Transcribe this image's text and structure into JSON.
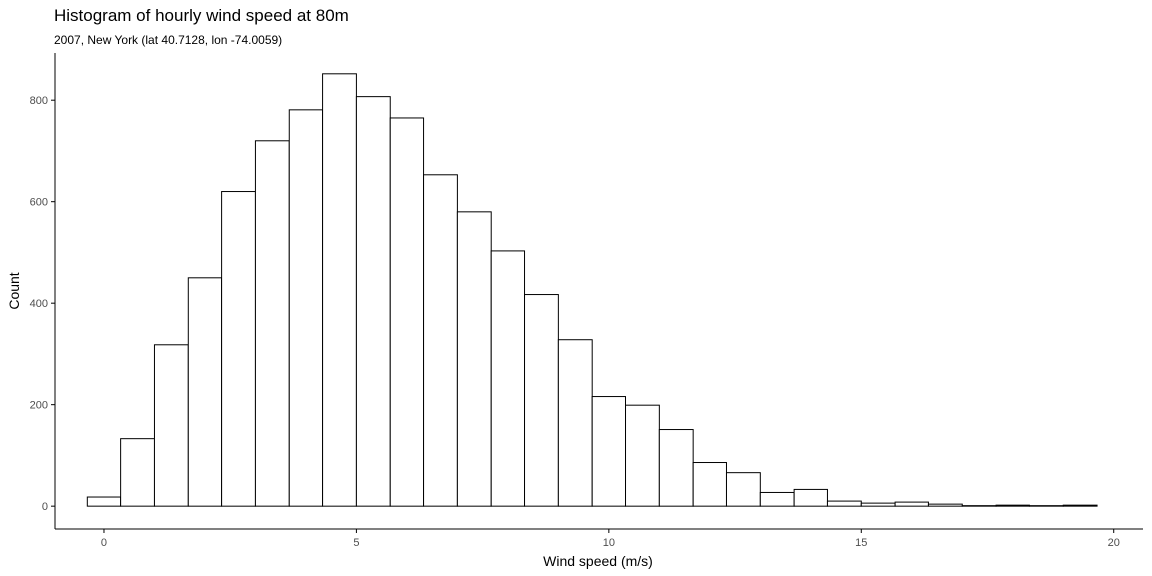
{
  "chart_data": {
    "type": "bar",
    "title": "Histogram of hourly wind speed at 80m",
    "subtitle": "2007, New York (lat 40.7128, lon -74.0059)",
    "xlabel": "Wind speed (m/s)",
    "ylabel": "Count",
    "xlim": [
      -0.97,
      20.58
    ],
    "ylim": [
      -45,
      893
    ],
    "grid": false,
    "x_ticks": [
      0,
      5,
      10,
      15,
      20
    ],
    "y_ticks": [
      0,
      200,
      400,
      600,
      800
    ],
    "bins": [
      {
        "start": -0.33,
        "end": 0.33,
        "count": 18
      },
      {
        "start": 0.33,
        "end": 1.0,
        "count": 133
      },
      {
        "start": 1.0,
        "end": 1.67,
        "count": 318
      },
      {
        "start": 1.67,
        "end": 2.33,
        "count": 450
      },
      {
        "start": 2.33,
        "end": 3.0,
        "count": 620
      },
      {
        "start": 3.0,
        "end": 3.67,
        "count": 720
      },
      {
        "start": 3.67,
        "end": 4.33,
        "count": 781
      },
      {
        "start": 4.33,
        "end": 5.0,
        "count": 852
      },
      {
        "start": 5.0,
        "end": 5.67,
        "count": 807
      },
      {
        "start": 5.67,
        "end": 6.33,
        "count": 765
      },
      {
        "start": 6.33,
        "end": 7.0,
        "count": 653
      },
      {
        "start": 7.0,
        "end": 7.67,
        "count": 580
      },
      {
        "start": 7.67,
        "end": 8.33,
        "count": 503
      },
      {
        "start": 8.33,
        "end": 9.0,
        "count": 417
      },
      {
        "start": 9.0,
        "end": 9.67,
        "count": 328
      },
      {
        "start": 9.67,
        "end": 10.33,
        "count": 216
      },
      {
        "start": 10.33,
        "end": 11.0,
        "count": 199
      },
      {
        "start": 11.0,
        "end": 11.67,
        "count": 151
      },
      {
        "start": 11.67,
        "end": 12.33,
        "count": 86
      },
      {
        "start": 12.33,
        "end": 13.0,
        "count": 66
      },
      {
        "start": 13.0,
        "end": 13.67,
        "count": 27
      },
      {
        "start": 13.67,
        "end": 14.33,
        "count": 33
      },
      {
        "start": 14.33,
        "end": 15.0,
        "count": 10
      },
      {
        "start": 15.0,
        "end": 15.67,
        "count": 6
      },
      {
        "start": 15.67,
        "end": 16.33,
        "count": 8
      },
      {
        "start": 16.33,
        "end": 17.0,
        "count": 4
      },
      {
        "start": 17.0,
        "end": 17.67,
        "count": 1
      },
      {
        "start": 17.67,
        "end": 18.33,
        "count": 2
      },
      {
        "start": 18.33,
        "end": 19.0,
        "count": 1
      },
      {
        "start": 19.0,
        "end": 19.67,
        "count": 2
      }
    ],
    "colors": {
      "fill": "#ffffff",
      "stroke": "#000000",
      "axis": "#000000",
      "tick_label": "#4d4d4d"
    }
  }
}
